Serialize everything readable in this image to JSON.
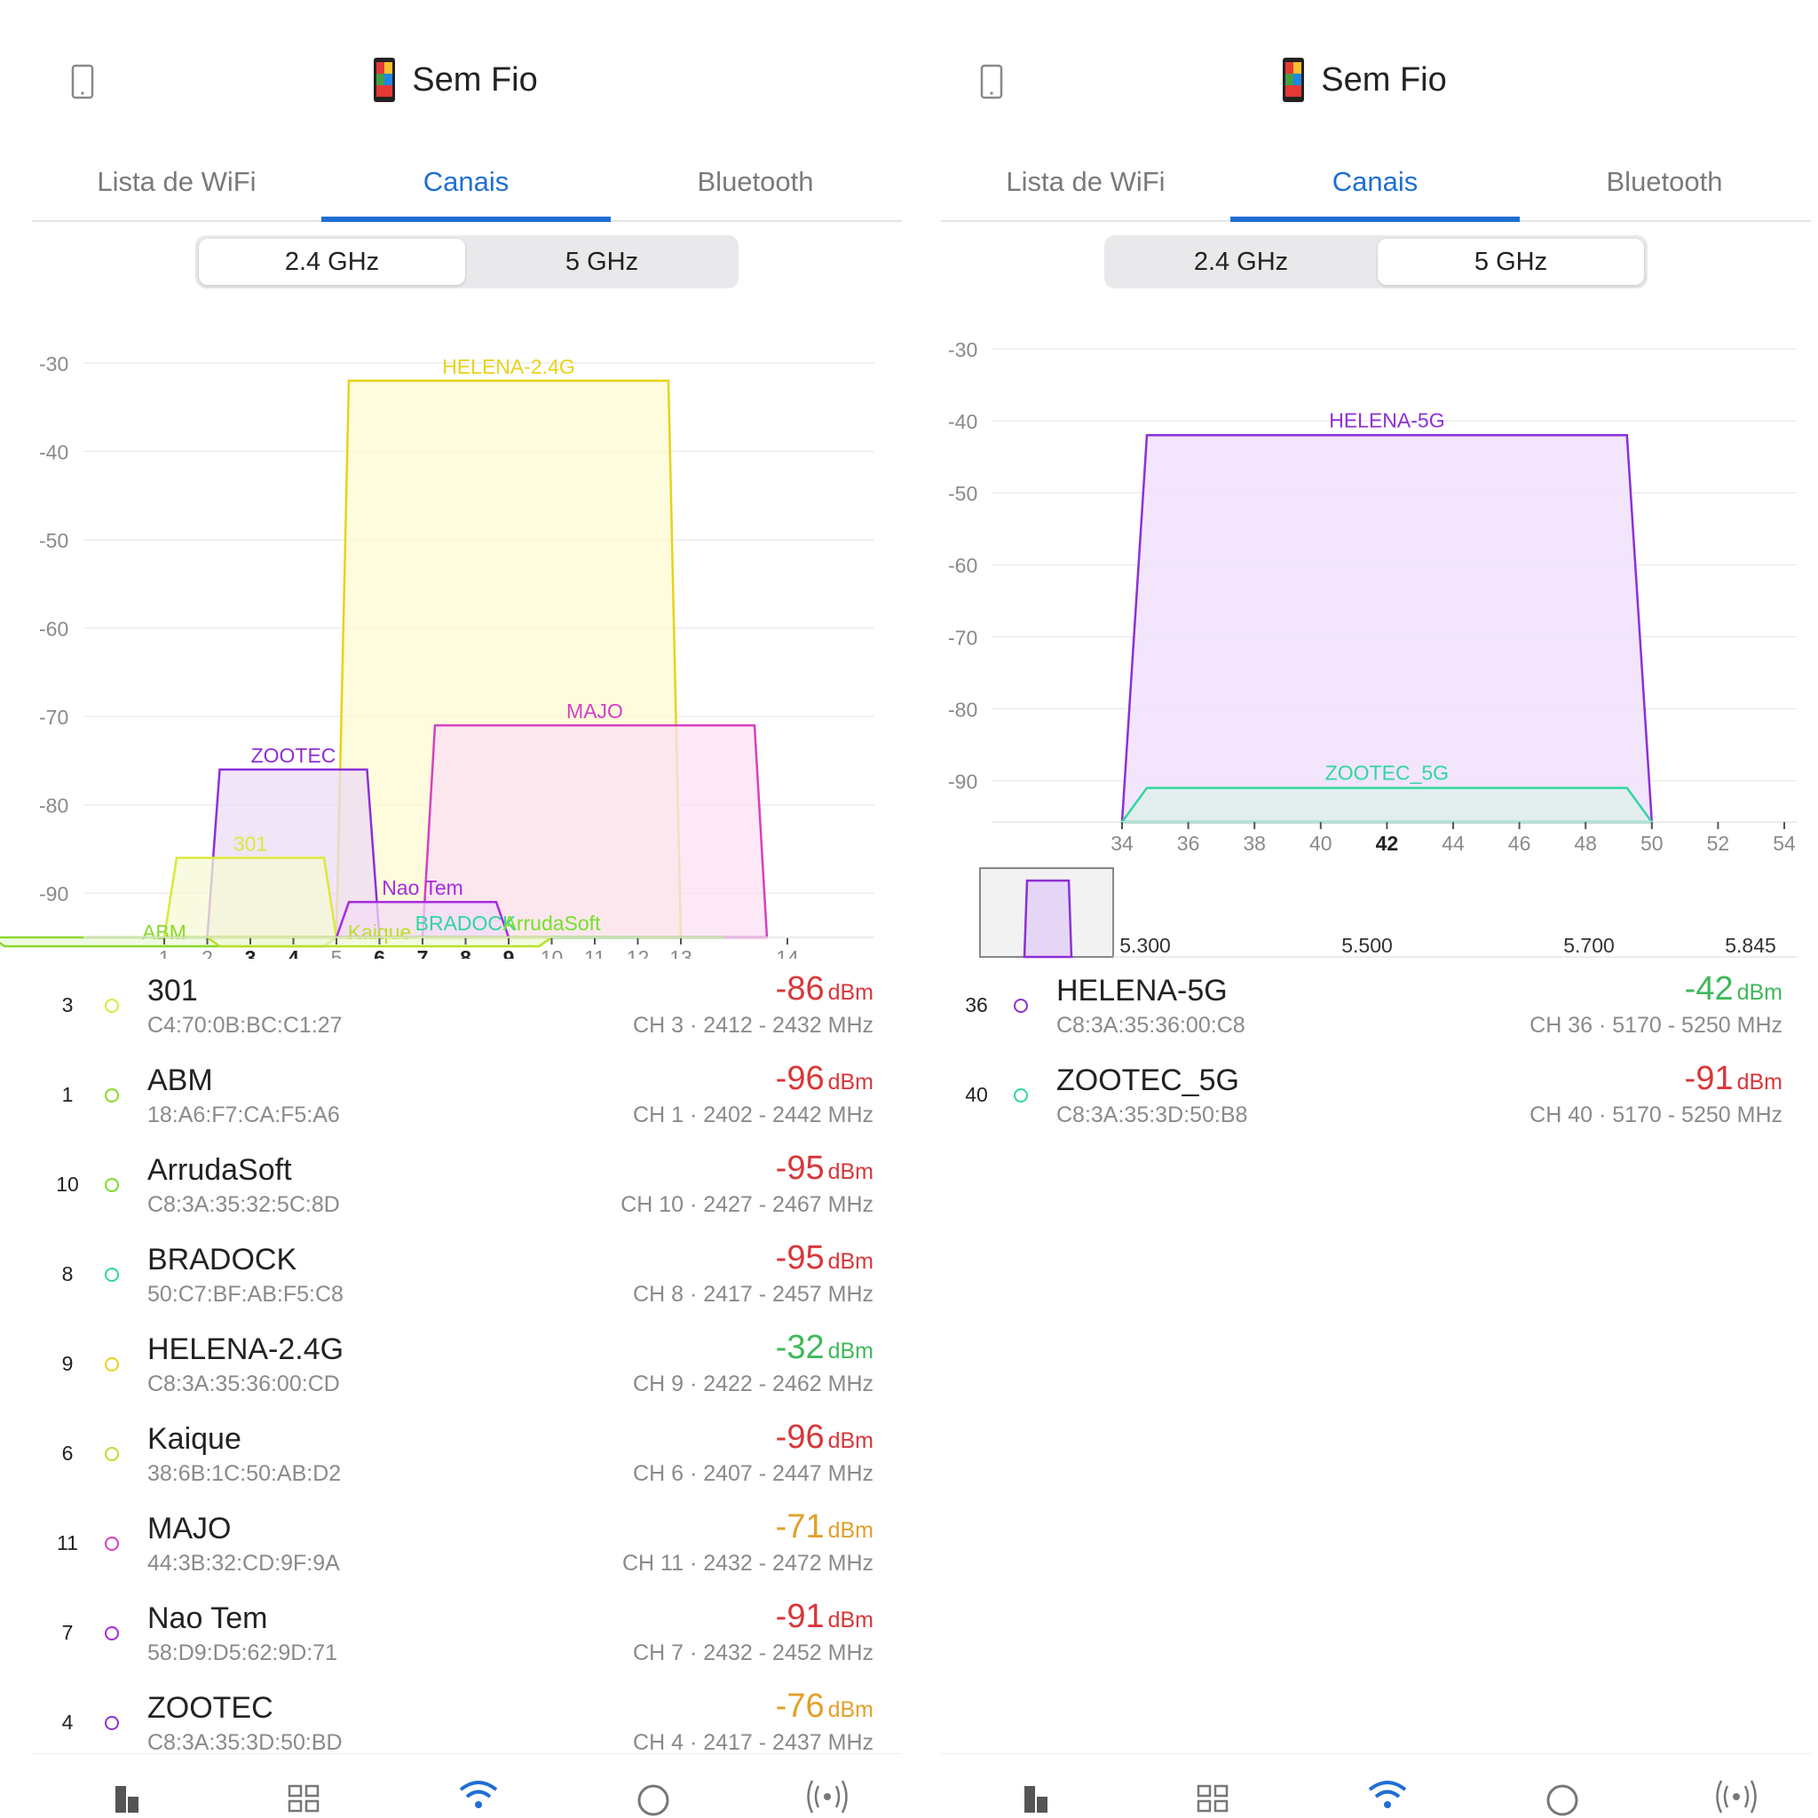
{
  "left": {
    "app_title": "Sem Fio",
    "tabs": [
      {
        "label": "Lista de WiFi"
      },
      {
        "label": "Canais"
      },
      {
        "label": "Bluetooth"
      }
    ],
    "active_tab": 1,
    "band_toggle": {
      "options": [
        "2.4 GHz",
        "5 GHz"
      ],
      "selected": "2.4 GHz"
    },
    "chart_data": {
      "type": "area",
      "ylabel": "",
      "xlabel": "",
      "ylim": [
        -95,
        -30
      ],
      "y_ticks": [
        -30,
        -40,
        -50,
        -60,
        -70,
        -80,
        -90
      ],
      "x_ticks": [
        "1",
        "2",
        "3",
        "4",
        "5",
        "6",
        "7",
        "8",
        "9",
        "10",
        "11",
        "12",
        "13",
        "14"
      ],
      "x_bold_ticks": [
        "3",
        "4",
        "6",
        "7",
        "8",
        "9"
      ],
      "grid": true,
      "series": [
        {
          "name": "HELENA-2.4G",
          "channel": 9,
          "width_channels": 8,
          "dbm": -32,
          "color": "#e8d21a",
          "fill": "#fdfbd0"
        },
        {
          "name": "MAJO",
          "channel": 11,
          "width_channels": 8,
          "dbm": -71,
          "color": "#d63fc4",
          "fill": "#fbe0f4"
        },
        {
          "name": "ZOOTEC",
          "channel": 4,
          "width_channels": 4,
          "dbm": -76,
          "color": "#8e2fd6",
          "fill": "#ecdcf5"
        },
        {
          "name": "301",
          "channel": 3,
          "width_channels": 4,
          "dbm": -86,
          "color": "#d9ea3a",
          "fill": "#f6fad6"
        },
        {
          "name": "Nao Tem",
          "channel": 7,
          "width_channels": 4,
          "dbm": -91,
          "color": "#a52be0",
          "fill": "#f3dcf5"
        },
        {
          "name": "BRADOCK",
          "channel": 8,
          "width_channels": 8,
          "dbm": -95,
          "color": "#2fd6a0",
          "fill": "#e0f8ee"
        },
        {
          "name": "ArrudaSoft",
          "channel": 10,
          "width_channels": 8,
          "dbm": -95,
          "color": "#74e02a",
          "fill": "#eafad8"
        },
        {
          "name": "ABM",
          "channel": 1,
          "width_channels": 8,
          "dbm": -96,
          "color": "#8ad82a",
          "fill": "#eef8dc"
        },
        {
          "name": "Kaique",
          "channel": 6,
          "width_channels": 8,
          "dbm": -96,
          "color": "#b8e02a",
          "fill": "#f2f8d8"
        }
      ]
    },
    "networks": [
      {
        "channel": "3",
        "name": "301",
        "mac": "C4:70:0B:BC:C1:27",
        "dbm": "-86",
        "unit": "dBm",
        "info": "CH 3 · 2412 - 2432 MHz",
        "signal_color": "#d8373a",
        "dot_color": "#d9ea3a"
      },
      {
        "channel": "1",
        "name": "ABM",
        "mac": "18:A6:F7:CA:F5:A6",
        "dbm": "-96",
        "unit": "dBm",
        "info": "CH 1 · 2402 - 2442 MHz",
        "signal_color": "#d8373a",
        "dot_color": "#8ad82a"
      },
      {
        "channel": "10",
        "name": "ArrudaSoft",
        "mac": "C8:3A:35:32:5C:8D",
        "dbm": "-95",
        "unit": "dBm",
        "info": "CH 10 · 2427 - 2467 MHz",
        "signal_color": "#d8373a",
        "dot_color": "#74e02a"
      },
      {
        "channel": "8",
        "name": "BRADOCK",
        "mac": "50:C7:BF:AB:F5:C8",
        "dbm": "-95",
        "unit": "dBm",
        "info": "CH 8 · 2417 - 2457 MHz",
        "signal_color": "#d8373a",
        "dot_color": "#2fd6a0"
      },
      {
        "channel": "9",
        "name": "HELENA-2.4G",
        "mac": "C8:3A:35:36:00:CD",
        "dbm": "-32",
        "unit": "dBm",
        "info": "CH 9 · 2422 - 2462 MHz",
        "signal_color": "#3fb85a",
        "dot_color": "#e8d21a"
      },
      {
        "channel": "6",
        "name": "Kaique",
        "mac": "38:6B:1C:50:AB:D2",
        "dbm": "-96",
        "unit": "dBm",
        "info": "CH 6 · 2407 - 2447 MHz",
        "signal_color": "#d8373a",
        "dot_color": "#b8e02a"
      },
      {
        "channel": "11",
        "name": "MAJO",
        "mac": "44:3B:32:CD:9F:9A",
        "dbm": "-71",
        "unit": "dBm",
        "info": "CH 11 · 2432 - 2472 MHz",
        "signal_color": "#e0a12a",
        "dot_color": "#d63fc4"
      },
      {
        "channel": "7",
        "name": "Nao Tem",
        "mac": "58:D9:D5:62:9D:71",
        "dbm": "-91",
        "unit": "dBm",
        "info": "CH 7 · 2432 - 2452 MHz",
        "signal_color": "#d8373a",
        "dot_color": "#a52be0"
      },
      {
        "channel": "4",
        "name": "ZOOTEC",
        "mac": "C8:3A:35:3D:50:BD",
        "dbm": "-76",
        "unit": "dBm",
        "info": "CH 4 · 2417 - 2437 MHz",
        "signal_color": "#e0a12a",
        "dot_color": "#8e2fd6"
      }
    ],
    "bottom_nav": [
      "dashboard-icon",
      "grid-icon",
      "wifi-icon",
      "circle-icon",
      "radar-icon"
    ],
    "bottom_nav_active": 2
  },
  "right": {
    "app_title": "Sem Fio",
    "tabs": [
      {
        "label": "Lista de WiFi"
      },
      {
        "label": "Canais"
      },
      {
        "label": "Bluetooth"
      }
    ],
    "active_tab": 1,
    "band_toggle": {
      "options": [
        "2.4 GHz",
        "5 GHz"
      ],
      "selected": "5 GHz"
    },
    "chart_data": {
      "type": "area",
      "ylabel": "",
      "xlabel": "",
      "ylim": [
        -95,
        -30
      ],
      "y_ticks": [
        -30,
        -40,
        -50,
        -60,
        -70,
        -80,
        -90
      ],
      "x_ticks": [
        "34",
        "36",
        "38",
        "40",
        "42",
        "44",
        "46",
        "48",
        "50",
        "52",
        "54"
      ],
      "x_bold_ticks": [
        "42"
      ],
      "grid": true,
      "series": [
        {
          "name": "HELENA-5G",
          "channel_start": 34,
          "channel_end": 50,
          "dbm": -42,
          "color": "#8e2fd6",
          "fill": "#f0e0fb"
        },
        {
          "name": "ZOOTEC_5G",
          "channel_start": 34,
          "channel_end": 50,
          "dbm": -91,
          "color": "#2fd6a0",
          "fill": "#dff0ea"
        }
      ],
      "overview": {
        "freq_labels": [
          "5.300",
          "5.500",
          "5.700",
          "5.845"
        ]
      }
    },
    "networks": [
      {
        "channel": "36",
        "name": "HELENA-5G",
        "mac": "C8:3A:35:36:00:C8",
        "dbm": "-42",
        "unit": "dBm",
        "info": "CH 36 · 5170 - 5250 MHz",
        "signal_color": "#3fb85a",
        "dot_color": "#8e2fd6"
      },
      {
        "channel": "40",
        "name": "ZOOTEC_5G",
        "mac": "C8:3A:35:3D:50:B8",
        "dbm": "-91",
        "unit": "dBm",
        "info": "CH 40 · 5170 - 5250 MHz",
        "signal_color": "#d8373a",
        "dot_color": "#2fd6a0"
      }
    ],
    "bottom_nav": [
      "dashboard-icon",
      "grid-icon",
      "wifi-icon",
      "circle-icon",
      "radar-icon"
    ],
    "bottom_nav_active": 2
  }
}
